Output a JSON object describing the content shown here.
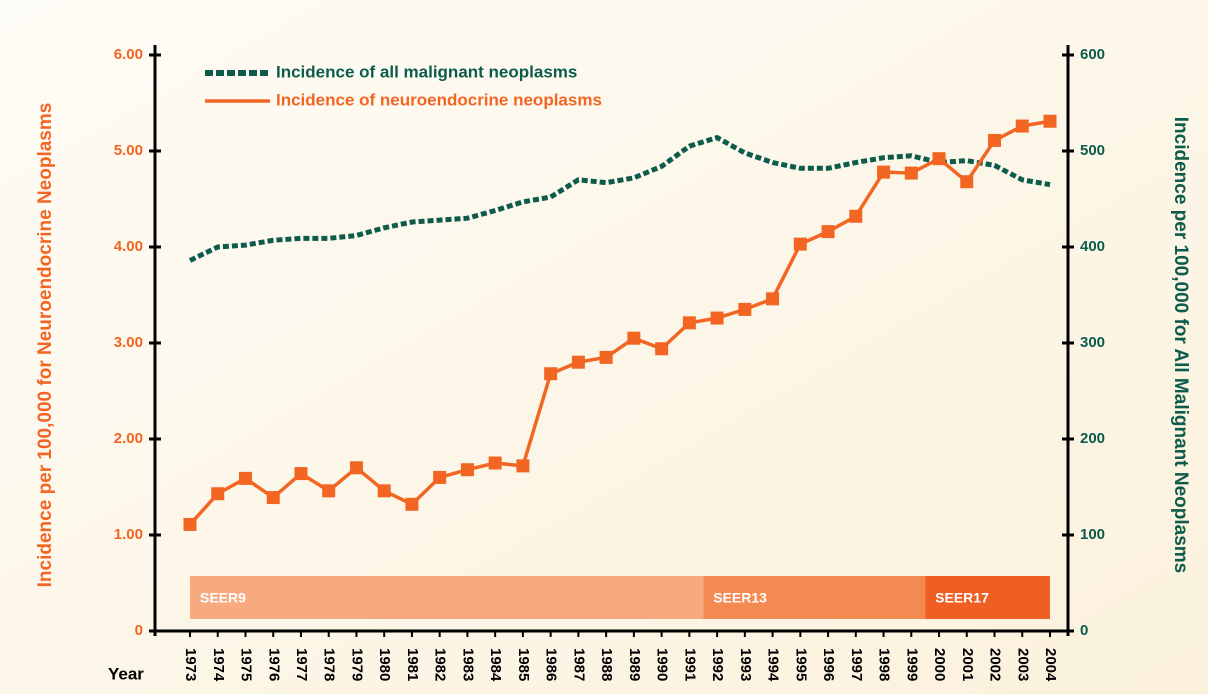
{
  "chart_data": {
    "type": "line",
    "xlabel": "Year",
    "ylabel": "Incidence per 100,000 for Neuroendocrine Neoplasms",
    "y2label": "Incidence per 100,000 for All Malignant Neoplasms",
    "categories": [
      "1973",
      "1974",
      "1975",
      "1976",
      "1977",
      "1978",
      "1979",
      "1980",
      "1981",
      "1982",
      "1983",
      "1984",
      "1985",
      "1986",
      "1987",
      "1988",
      "1989",
      "1990",
      "1991",
      "1992",
      "1993",
      "1994",
      "1995",
      "1996",
      "1997",
      "1998",
      "1999",
      "2000",
      "2001",
      "2002",
      "2003",
      "2004"
    ],
    "series": [
      {
        "name": "Incidence of all malignant neoplasms",
        "color": "#0d5b4b",
        "axis": "y2",
        "style": "dotted",
        "values": [
          386,
          400,
          402,
          407,
          409,
          409,
          412,
          420,
          426,
          428,
          430,
          438,
          447,
          452,
          470,
          467,
          472,
          484,
          505,
          514,
          498,
          488,
          482,
          482,
          488,
          493,
          495,
          488,
          490,
          485,
          470,
          465
        ]
      },
      {
        "name": "Incidence of neuroendocrine neoplasms",
        "color": "#f26522",
        "style": "solid",
        "marker": "square",
        "values": [
          1.11,
          1.43,
          1.59,
          1.39,
          1.64,
          1.46,
          1.7,
          1.46,
          1.32,
          1.6,
          1.68,
          1.75,
          1.72,
          2.68,
          2.8,
          2.85,
          3.05,
          2.94,
          3.21,
          3.26,
          3.35,
          3.46,
          4.03,
          4.16,
          4.32,
          4.78,
          4.77,
          4.92,
          4.68,
          5.11,
          5.26,
          5.31
        ]
      }
    ],
    "ylim": [
      0,
      6
    ],
    "yticks": [
      0,
      {
        "value": 1,
        "label": "1.00"
      },
      {
        "value": 2,
        "label": "2.00"
      },
      {
        "value": 3,
        "label": "3.00"
      },
      {
        "value": 4,
        "label": "4.00"
      },
      {
        "value": 5,
        "label": "5.00"
      },
      {
        "value": 6,
        "label": "6.00"
      }
    ],
    "y2lim": [
      0,
      600
    ],
    "y2ticks": [
      0,
      100,
      200,
      300,
      400,
      500,
      600
    ],
    "bands": [
      {
        "label": "SEER9",
        "start": "1973",
        "end": "1991",
        "color": "#f7aa80"
      },
      {
        "label": "SEER13",
        "start": "1992",
        "end": "1999",
        "color": "#f38a52"
      },
      {
        "label": "SEER17",
        "start": "2000",
        "end": "2004",
        "color": "#ef5f24"
      }
    ],
    "legend": "top-left"
  }
}
